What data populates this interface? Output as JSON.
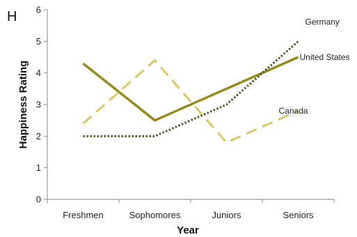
{
  "panel_label": "H",
  "chart_data": {
    "type": "line",
    "categories": [
      "Freshmen",
      "Sophomores",
      "Juniors",
      "Seniors"
    ],
    "xlabel": "Year",
    "ylabel": "Happiness Rating",
    "ylim": [
      0,
      6
    ],
    "yticks": [
      "0",
      "1",
      "2",
      "3",
      "4",
      "5",
      "6"
    ],
    "grid": false,
    "legend": "labels at line ends",
    "series": [
      {
        "name": "United States",
        "values": [
          4.3,
          2.5,
          3.5,
          4.5
        ],
        "color": "#9a8a1e",
        "style": "solid"
      },
      {
        "name": "Canada",
        "values": [
          2.4,
          4.4,
          1.8,
          2.8
        ],
        "color": "#d8c66a",
        "style": "dashed"
      },
      {
        "name": "Germany",
        "values": [
          2.0,
          2.0,
          3.0,
          5.0
        ],
        "color": "#55542a",
        "style": "dotted"
      }
    ]
  }
}
